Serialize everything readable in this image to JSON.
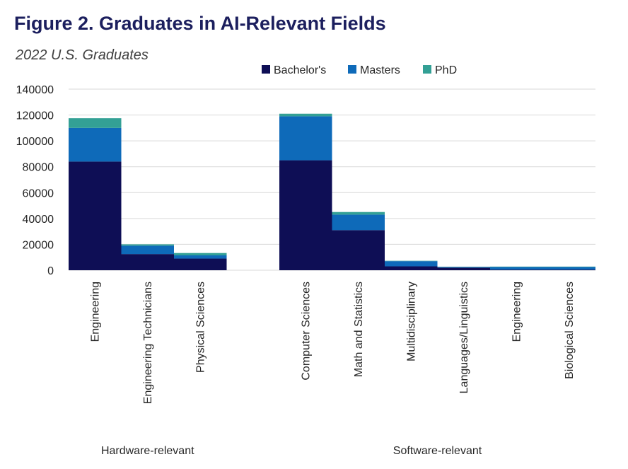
{
  "chart_data": {
    "type": "bar",
    "stacked": true,
    "title": "Figure 2. Graduates in AI-Relevant Fields",
    "subtitle": "2022 U.S. Graduates",
    "ylim": [
      0,
      140000
    ],
    "yticks": [
      0,
      20000,
      40000,
      60000,
      80000,
      100000,
      120000,
      140000
    ],
    "grid": true,
    "legend_position": "top",
    "groups": [
      {
        "label": "Hardware-relevant",
        "categories": [
          "Engineering",
          "Engineering Technicians",
          "Physical Sciences"
        ],
        "series": [
          {
            "name": "Bachelor's",
            "values": [
              84000,
              12500,
              9000
            ]
          },
          {
            "name": "Masters",
            "values": [
              26000,
              6500,
              2500
            ]
          },
          {
            "name": "PhD",
            "values": [
              7500,
              1000,
              1800
            ]
          }
        ]
      },
      {
        "label": "Software-relevant",
        "categories": [
          "Computer Sciences",
          "Math and Statistics",
          "Multidisciplinary",
          "Languages/Linguistics",
          "Engineering",
          "Biological Sciences"
        ],
        "series": [
          {
            "name": "Bachelor's",
            "values": [
              85000,
              31000,
              3000,
              2000,
              500,
              500
            ]
          },
          {
            "name": "Masters",
            "values": [
              34000,
              12000,
              4000,
              500,
              2000,
              2000
            ]
          },
          {
            "name": "PhD",
            "values": [
              2000,
              2000,
              300,
              200,
              300,
              300
            ]
          }
        ]
      }
    ],
    "colors": {
      "Bachelor's": "#0e0e55",
      "Masters": "#0e6ab9",
      "PhD": "#33a095"
    }
  }
}
